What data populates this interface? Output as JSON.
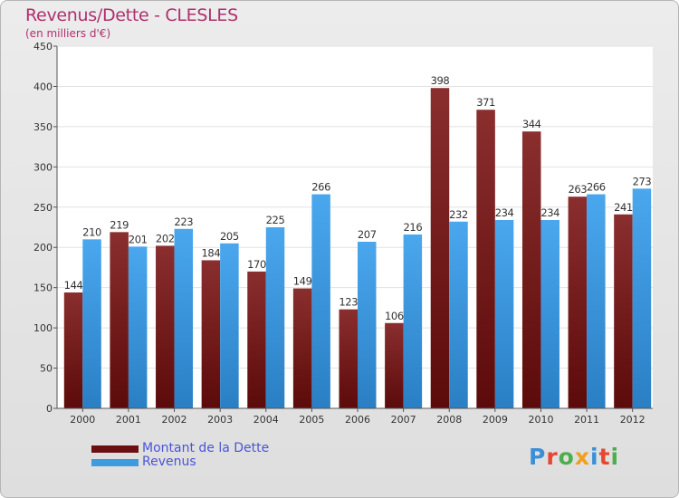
{
  "chart_data": {
    "type": "bar",
    "title": "Revenus/Dette - CLESLES",
    "subtitle": "(en milliers d'€)",
    "categories": [
      "2000",
      "2001",
      "2002",
      "2003",
      "2004",
      "2005",
      "2006",
      "2007",
      "2008",
      "2009",
      "2010",
      "2011",
      "2012"
    ],
    "series": [
      {
        "name": "Montant de la Dette",
        "color": "#7a1c1c",
        "values": [
          144,
          219,
          202,
          184,
          170,
          149,
          123,
          106,
          398,
          371,
          344,
          263,
          241
        ]
      },
      {
        "name": "Revenus",
        "color": "#3d9be0",
        "values": [
          210,
          201,
          223,
          205,
          225,
          266,
          207,
          216,
          232,
          234,
          234,
          266,
          273
        ]
      }
    ],
    "ylim": [
      0,
      450
    ],
    "yticks": [
      0,
      50,
      100,
      150,
      200,
      250,
      300,
      350,
      400,
      450
    ],
    "grid": true,
    "legend": "bottom-left"
  },
  "logo": {
    "letters": [
      "P",
      "r",
      "o",
      "x",
      "i",
      "t",
      "i"
    ],
    "colors": [
      "#3a8fd8",
      "#e8462e",
      "#4cae4c",
      "#f0a020",
      "#3a8fd8",
      "#e8462e",
      "#4cae4c"
    ]
  }
}
